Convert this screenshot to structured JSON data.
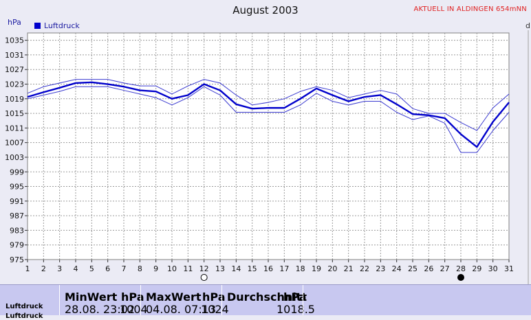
{
  "page": {
    "title": "August 2003",
    "location_note": "AKTUELL IN ALDINGEN 654mNN",
    "y_unit": "hPa",
    "right_corner": "d"
  },
  "chart_data": {
    "type": "line",
    "title": "August 2003",
    "ylabel": "hPa",
    "xlabel": "",
    "ylim": [
      975,
      1037
    ],
    "yticks": [
      975,
      979,
      983,
      987,
      991,
      995,
      999,
      1003,
      1007,
      1011,
      1015,
      1019,
      1023,
      1027,
      1031,
      1035
    ],
    "x": [
      1,
      2,
      3,
      4,
      5,
      6,
      7,
      8,
      9,
      10,
      11,
      12,
      13,
      14,
      15,
      16,
      17,
      18,
      19,
      20,
      21,
      22,
      23,
      24,
      25,
      26,
      27,
      28,
      29,
      30,
      31
    ],
    "legend": "top-left",
    "grid": true,
    "series": [
      {
        "name": "Luftdruck",
        "role": "mean",
        "color": "#0000cc",
        "values": [
          1019.5,
          1020.8,
          1022,
          1023.3,
          1023.5,
          1023,
          1022.3,
          1021.3,
          1021,
          1019,
          1020,
          1023,
          1021.3,
          1017.5,
          1016.3,
          1016.5,
          1016.5,
          1019,
          1021.8,
          1020,
          1018.3,
          1019.5,
          1020,
          1017.5,
          1014.8,
          1014.5,
          1013.7,
          1009.3,
          1005.8,
          1012.7,
          1018
        ]
      },
      {
        "role": "max",
        "color": "#3a3ad0",
        "values": [
          1020.5,
          1022.3,
          1023.3,
          1024.3,
          1024.3,
          1024.3,
          1023.3,
          1022.5,
          1022.5,
          1020.3,
          1022.5,
          1024.3,
          1023.3,
          1020,
          1017.3,
          1018,
          1019,
          1021,
          1022.3,
          1021.3,
          1019.3,
          1020.3,
          1021.3,
          1020.3,
          1016.3,
          1015,
          1015,
          1012.5,
          1010.3,
          1016.5,
          1020.3
        ]
      },
      {
        "role": "min",
        "color": "#3a3ad0",
        "values": [
          1019,
          1020,
          1021,
          1022.3,
          1022.3,
          1022.3,
          1021.3,
          1020.3,
          1019.3,
          1017.3,
          1019.3,
          1022.3,
          1020,
          1015.3,
          1015.3,
          1015.3,
          1015.3,
          1017.3,
          1020.5,
          1018.3,
          1017.3,
          1018.3,
          1018.3,
          1015.3,
          1013.3,
          1014.3,
          1012.3,
          1004.3,
          1004.3,
          1010.3,
          1015.3
        ]
      }
    ],
    "moon_markers": [
      {
        "day": 12,
        "phase": "full-moon"
      },
      {
        "day": 28,
        "phase": "new-moon"
      }
    ]
  },
  "legend": {
    "label": "Luftdruck",
    "color": "#0000cc"
  },
  "stats": {
    "headers": {
      "min": "MinWert",
      "min_unit": "hPa",
      "max": "MaxWert",
      "max_unit": "hPa",
      "avg": "Durchschnitt",
      "avg_unit": "hPa"
    },
    "row": {
      "label": "Luftdruck",
      "min_time": "28.08.  23:02",
      "min_value": "1004",
      "max_time": "04.08.  07:13",
      "max_value": "1024",
      "avg_value": "1018.5"
    },
    "second_row_label": "Luftdruck"
  }
}
